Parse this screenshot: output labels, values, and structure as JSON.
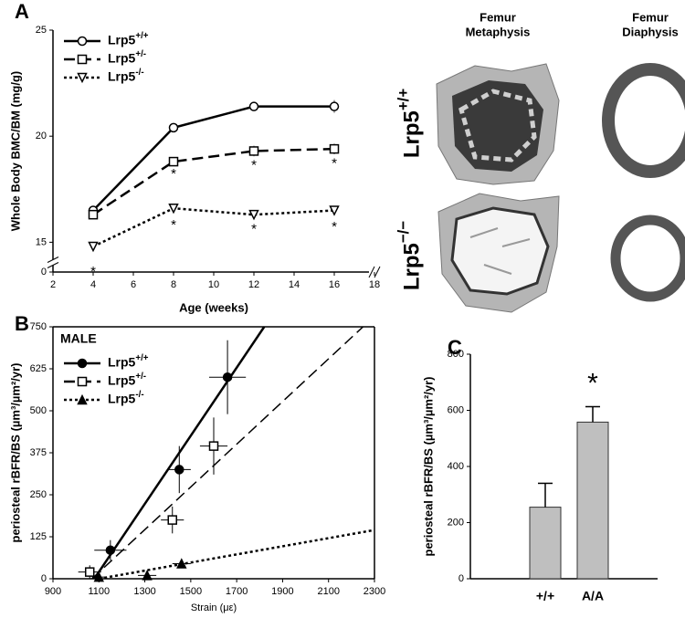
{
  "chart_data": [
    {
      "type": "line",
      "panel_label": "A",
      "xlabel": "Age (weeks)",
      "ylabel": "Whole Body BMC/BM (mg/g)",
      "x": [
        4,
        8,
        12,
        16
      ],
      "xlim": [
        2,
        18
      ],
      "xticks": [
        2,
        4,
        6,
        8,
        10,
        12,
        14,
        16,
        18
      ],
      "ylim": [
        14.5,
        25
      ],
      "yticks": [
        0,
        15,
        20,
        25
      ],
      "axis_break": true,
      "legend": "upper left",
      "series": [
        {
          "name": "Lrp5+/+",
          "color": "#000000",
          "dash": "solid",
          "marker": "circle",
          "values": [
            16.5,
            20.4,
            21.4,
            21.4
          ],
          "errors": [
            0.15,
            0.15,
            0.2,
            0.3
          ]
        },
        {
          "name": "Lrp5+/-",
          "color": "#000000",
          "dash": "dashed",
          "marker": "square",
          "values": [
            16.3,
            18.8,
            19.3,
            19.4
          ],
          "errors": [
            0.15,
            0.15,
            0.25,
            0.25
          ]
        },
        {
          "name": "Lrp5-/-",
          "color": "#000000",
          "dash": "dotted",
          "marker": "triangle-down",
          "values": [
            14.8,
            16.6,
            16.3,
            16.5
          ],
          "errors": [
            0.15,
            0.2,
            0.15,
            0.2
          ]
        }
      ],
      "annotations": [
        {
          "text": "*",
          "x": 4,
          "y": 14.2
        },
        {
          "text": "*",
          "x": 8,
          "y": 18.2
        },
        {
          "text": "*",
          "x": 12,
          "y": 18.6
        },
        {
          "text": "*",
          "x": 16,
          "y": 18.7
        },
        {
          "text": "*",
          "x": 8,
          "y": 15.8
        },
        {
          "text": "*",
          "x": 12,
          "y": 15.6
        },
        {
          "text": "*",
          "x": 16,
          "y": 15.7
        }
      ]
    },
    {
      "type": "scatter",
      "panel_label": "B",
      "title": "MALE",
      "xlabel": "Strain (με)",
      "ylabel": "periosteal rBFR/BS (µm³/µm²/yr)",
      "xlim": [
        900,
        2300
      ],
      "xticks": [
        900,
        1100,
        1300,
        1500,
        1700,
        1900,
        2100,
        2300
      ],
      "ylim": [
        0,
        750
      ],
      "yticks": [
        0,
        125,
        250,
        375,
        500,
        625,
        750
      ],
      "legend": "upper left",
      "series": [
        {
          "name": "Lrp5+/+",
          "color": "#000000",
          "dash": "solid",
          "marker": "circle-filled",
          "x": [
            1150,
            1450,
            1660
          ],
          "values": [
            85,
            325,
            600
          ],
          "xerr": [
            70,
            50,
            80
          ],
          "yerr": [
            30,
            70,
            110
          ],
          "fit_x": [
            1080,
            1820
          ],
          "fit_y": [
            0,
            750
          ]
        },
        {
          "name": "Lrp5+/-",
          "color": "#000000",
          "dash": "dashed",
          "marker": "square",
          "x": [
            1060,
            1420,
            1600
          ],
          "values": [
            20,
            175,
            395
          ],
          "xerr": [
            50,
            50,
            60
          ],
          "yerr": [
            20,
            40,
            85
          ],
          "fit_x": [
            1070,
            2250
          ],
          "fit_y": [
            0,
            750
          ]
        },
        {
          "name": "Lrp5-/-",
          "color": "#000000",
          "dash": "dotted",
          "marker": "triangle-filled",
          "x": [
            1100,
            1310,
            1460
          ],
          "values": [
            5,
            10,
            45
          ],
          "xerr": [
            30,
            40,
            40
          ],
          "yerr": [
            5,
            5,
            10
          ],
          "fit_x": [
            1100,
            2300
          ],
          "fit_y": [
            0,
            145
          ]
        }
      ]
    },
    {
      "type": "bar",
      "panel_label": "C",
      "ylabel": "periosteal rBFR/BS (µm³/µm²/yr)",
      "categories": [
        "+/+",
        "A/A"
      ],
      "values": [
        255,
        558
      ],
      "errors": [
        85,
        55
      ],
      "color": "#bfbfbf",
      "ylim": [
        0,
        800
      ],
      "yticks": [
        0,
        200,
        400,
        600,
        800
      ],
      "annotations": [
        {
          "text": "*",
          "x": "A/A",
          "y": 690
        }
      ]
    }
  ],
  "micro_ct": {
    "column_labels": [
      [
        "Femur",
        "Metaphysis"
      ],
      [
        "Femur",
        "Diaphysis"
      ]
    ],
    "row_labels": [
      "Lrp5+/+",
      "Lrp5−/−"
    ]
  }
}
